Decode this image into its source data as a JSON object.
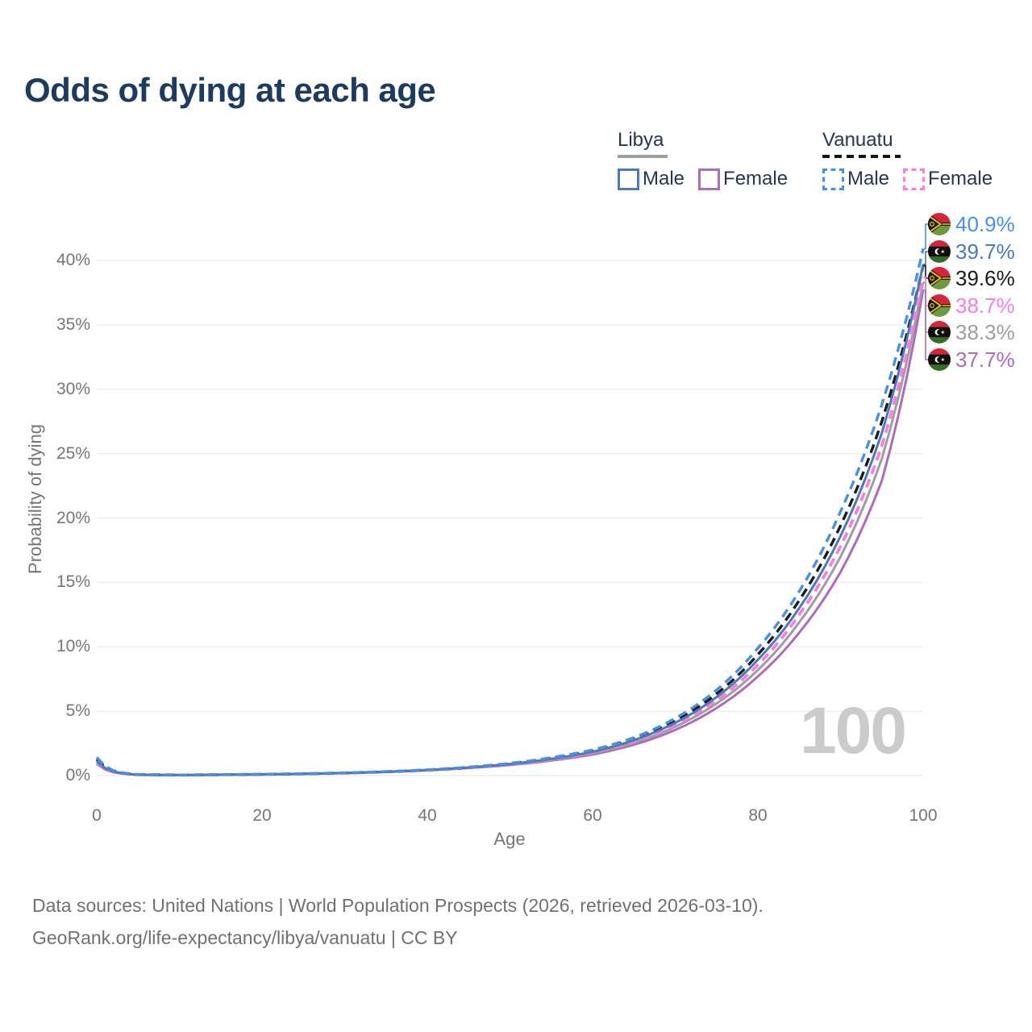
{
  "title": "Odds of dying at each age",
  "legend": {
    "groups": [
      {
        "country": "Libya",
        "style": "solid",
        "line_color": "#9e9e9e",
        "items": [
          {
            "label": "Male",
            "color": "#4a7ab8"
          },
          {
            "label": "Female",
            "color": "#ac6cba"
          }
        ]
      },
      {
        "country": "Vanuatu",
        "style": "dashed",
        "line_color": "#151515",
        "items": [
          {
            "label": "Male",
            "color": "#4a90e2"
          },
          {
            "label": "Female",
            "color": "#fa7de2"
          }
        ]
      }
    ]
  },
  "chart_data": {
    "type": "line",
    "title": "Odds of dying at each age",
    "xlabel": "Age",
    "ylabel": "Probability of dying",
    "x_ticks": [
      0,
      20,
      40,
      60,
      80,
      100
    ],
    "y_ticks": [
      "0%",
      "5%",
      "10%",
      "15%",
      "20%",
      "25%",
      "30%",
      "35%",
      "40%"
    ],
    "y_tick_values": [
      0,
      5,
      10,
      15,
      20,
      25,
      30,
      35,
      40
    ],
    "xlim": [
      0,
      100
    ],
    "ylim_percent": [
      0,
      42
    ],
    "grid": "horizontal",
    "legend_position": "top-right",
    "watermark": "100",
    "ages": [
      0,
      1,
      2,
      5,
      10,
      15,
      20,
      25,
      30,
      35,
      40,
      45,
      50,
      55,
      60,
      65,
      70,
      75,
      80,
      85,
      90,
      95,
      100
    ],
    "series": [
      {
        "name": "Vanuatu (male)",
        "country": "Vanuatu",
        "group": "male",
        "color": "#4a90e2",
        "dashed": true,
        "value_at_100": 40.9,
        "values": [
          1.42,
          0.74,
          0.4,
          0.08,
          0.05,
          0.07,
          0.1,
          0.15,
          0.21,
          0.31,
          0.45,
          0.66,
          0.96,
          1.4,
          2.0,
          2.95,
          4.45,
          6.65,
          9.9,
          14.3,
          20.5,
          28.8,
          40.9
        ]
      },
      {
        "name": "Libya (male)",
        "country": "Libya",
        "group": "male",
        "color": "#4a7ab8",
        "dashed": false,
        "value_at_100": 39.7,
        "values": [
          1.12,
          0.59,
          0.32,
          0.07,
          0.04,
          0.07,
          0.1,
          0.14,
          0.21,
          0.3,
          0.44,
          0.63,
          0.9,
          1.3,
          1.85,
          2.75,
          4.1,
          6.1,
          9.0,
          13.0,
          18.6,
          26.6,
          39.7
        ]
      },
      {
        "name": "Vanuatu (both sexes)",
        "country": "Vanuatu",
        "group": "total",
        "color": "#1a1a1a",
        "dashed": true,
        "value_at_100": 39.6,
        "values": [
          1.27,
          0.67,
          0.36,
          0.08,
          0.05,
          0.07,
          0.1,
          0.14,
          0.21,
          0.3,
          0.44,
          0.64,
          0.92,
          1.34,
          1.92,
          2.85,
          4.25,
          6.35,
          9.4,
          13.6,
          19.4,
          27.5,
          39.6
        ]
      },
      {
        "name": "Vanuatu (female)",
        "country": "Vanuatu",
        "group": "female",
        "color": "#fa7de2",
        "dashed": true,
        "value_at_100": 38.7,
        "values": [
          1.12,
          0.59,
          0.31,
          0.07,
          0.04,
          0.07,
          0.09,
          0.14,
          0.2,
          0.3,
          0.43,
          0.62,
          0.88,
          1.27,
          1.8,
          2.65,
          3.95,
          5.85,
          8.6,
          12.5,
          17.8,
          25.6,
          38.7
        ]
      },
      {
        "name": "Libya (both sexes)",
        "country": "Libya",
        "group": "total",
        "color": "#9e9e9e",
        "dashed": false,
        "value_at_100": 38.3,
        "values": [
          1.02,
          0.54,
          0.29,
          0.07,
          0.04,
          0.07,
          0.09,
          0.14,
          0.2,
          0.29,
          0.43,
          0.61,
          0.86,
          1.23,
          1.74,
          2.55,
          3.8,
          5.6,
          8.2,
          11.9,
          17.0,
          24.6,
          38.3
        ]
      },
      {
        "name": "Libya (female)",
        "country": "Libya",
        "group": "female",
        "color": "#ac6cba",
        "dashed": false,
        "value_at_100": 37.7,
        "values": [
          0.92,
          0.48,
          0.26,
          0.06,
          0.04,
          0.06,
          0.08,
          0.13,
          0.19,
          0.28,
          0.41,
          0.59,
          0.82,
          1.17,
          1.64,
          2.4,
          3.55,
          5.25,
          7.7,
          11.1,
          15.8,
          22.9,
          37.7
        ]
      }
    ]
  },
  "callouts": [
    {
      "label": "40.9%",
      "flag": "vanuatu",
      "color": "#4a90e2"
    },
    {
      "label": "39.7%",
      "flag": "libya",
      "color": "#4a7ab8"
    },
    {
      "label": "39.6%",
      "flag": "vanuatu",
      "color": "#1a1a1a"
    },
    {
      "label": "38.7%",
      "flag": "vanuatu",
      "color": "#fa7de2"
    },
    {
      "label": "38.3%",
      "flag": "libya",
      "color": "#9e9e9e"
    },
    {
      "label": "37.7%",
      "flag": "libya",
      "color": "#ac6cba"
    }
  ],
  "footer": {
    "line1": "Data sources: United Nations | World Population Prospects (2026, retrieved 2026-03-10).",
    "line2": "GeoRank.org/life-expectancy/libya/vanuatu | CC BY"
  }
}
